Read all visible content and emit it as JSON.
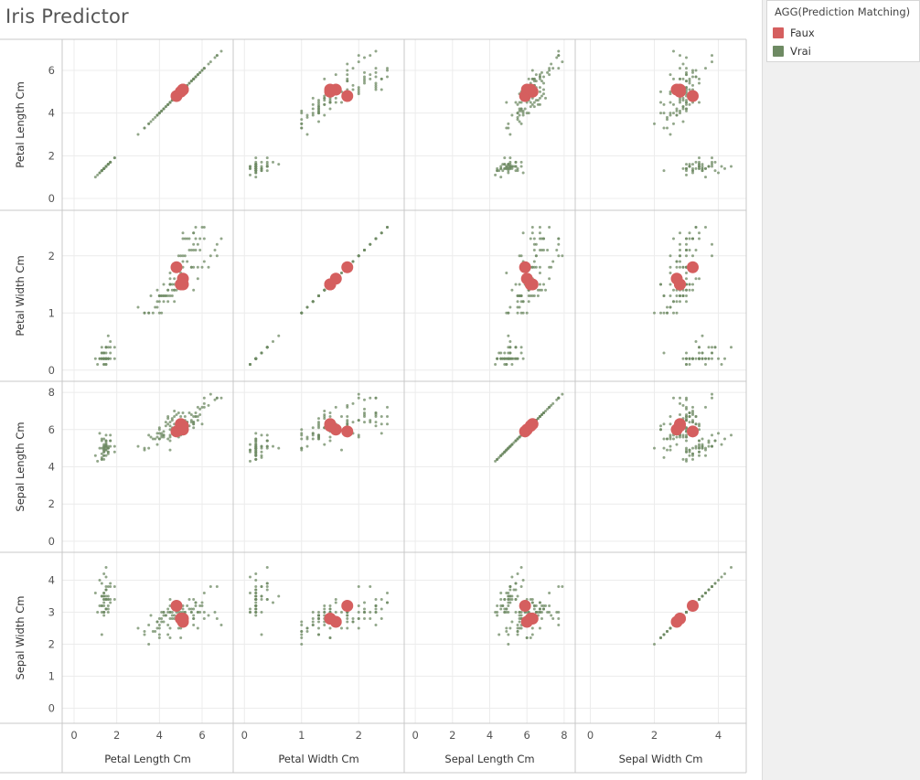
{
  "dashboard": {
    "title": "Iris Predictor"
  },
  "legend": {
    "title": "AGG(Prediction Matching)",
    "items": [
      {
        "label": "Faux",
        "color": "#d55f5f"
      },
      {
        "label": "Vrai",
        "color": "#6e8a63"
      }
    ]
  },
  "chart_data": {
    "type": "scatter",
    "matrix": "scatterplot-matrix",
    "variables": [
      "Petal Length Cm",
      "Petal Width Cm",
      "Sepal Length Cm",
      "Sepal Width Cm"
    ],
    "row_variables": [
      "Petal Length Cm",
      "Petal Width Cm",
      "Sepal Length Cm",
      "Sepal Width Cm"
    ],
    "col_variables": [
      "Petal Length Cm",
      "Petal Width Cm",
      "Sepal Length Cm",
      "Sepal Width Cm"
    ],
    "x_axes": {
      "Petal Length Cm": {
        "ticks": [
          0,
          2,
          4,
          6
        ],
        "range": [
          -0.3,
          7.2
        ]
      },
      "Petal Width Cm": {
        "ticks": [
          0,
          1,
          2
        ],
        "range": [
          -0.1,
          2.7
        ]
      },
      "Sepal Length Cm": {
        "ticks": [
          0,
          2,
          4,
          6,
          8
        ],
        "range": [
          -0.3,
          8.3
        ]
      },
      "Sepal Width Cm": {
        "ticks": [
          0,
          2,
          4
        ],
        "range": [
          -0.3,
          4.7
        ]
      }
    },
    "y_axes": {
      "Petal Length Cm": {
        "ticks": [
          0,
          2,
          4,
          6
        ],
        "range": [
          -0.3,
          7.2
        ]
      },
      "Petal Width Cm": {
        "ticks": [
          0,
          1,
          2
        ],
        "range": [
          -0.1,
          2.7
        ]
      },
      "Sepal Length Cm": {
        "ticks": [
          0,
          2,
          4,
          6,
          8
        ],
        "range": [
          -0.3,
          8.3
        ]
      },
      "Sepal Width Cm": {
        "ticks": [
          0,
          1,
          2,
          3,
          4
        ],
        "range": [
          -0.3,
          4.7
        ]
      }
    },
    "grid": true,
    "legend_position": "top-right",
    "series": [
      {
        "name": "Faux",
        "color": "#d55f5f",
        "points": [
          {
            "Petal Length Cm": 4.8,
            "Petal Width Cm": 1.8,
            "Sepal Length Cm": 5.9,
            "Sepal Width Cm": 3.2
          },
          {
            "Petal Length Cm": 5.0,
            "Petal Width Cm": 1.5,
            "Sepal Length Cm": 6.3,
            "Sepal Width Cm": 2.8
          },
          {
            "Petal Length Cm": 5.1,
            "Petal Width Cm": 1.6,
            "Sepal Length Cm": 6.0,
            "Sepal Width Cm": 2.7
          },
          {
            "Petal Length Cm": 5.1,
            "Petal Width Cm": 1.5,
            "Sepal Length Cm": 6.2,
            "Sepal Width Cm": 2.8
          }
        ]
      },
      {
        "name": "Vrai",
        "color": "#6e8a63",
        "points": [
          [
            5.1,
            3.5,
            1.4,
            0.2
          ],
          [
            4.9,
            3.0,
            1.4,
            0.2
          ],
          [
            4.7,
            3.2,
            1.3,
            0.2
          ],
          [
            4.6,
            3.1,
            1.5,
            0.2
          ],
          [
            5.0,
            3.6,
            1.4,
            0.2
          ],
          [
            5.4,
            3.9,
            1.7,
            0.4
          ],
          [
            4.6,
            3.4,
            1.4,
            0.3
          ],
          [
            5.0,
            3.4,
            1.5,
            0.2
          ],
          [
            4.4,
            2.9,
            1.4,
            0.2
          ],
          [
            4.9,
            3.1,
            1.5,
            0.1
          ],
          [
            5.4,
            3.7,
            1.5,
            0.2
          ],
          [
            4.8,
            3.4,
            1.6,
            0.2
          ],
          [
            4.8,
            3.0,
            1.4,
            0.1
          ],
          [
            4.3,
            3.0,
            1.1,
            0.1
          ],
          [
            5.8,
            4.0,
            1.2,
            0.2
          ],
          [
            5.7,
            4.4,
            1.5,
            0.4
          ],
          [
            5.4,
            3.9,
            1.3,
            0.4
          ],
          [
            5.1,
            3.5,
            1.4,
            0.3
          ],
          [
            5.7,
            3.8,
            1.7,
            0.3
          ],
          [
            5.1,
            3.8,
            1.5,
            0.3
          ],
          [
            5.4,
            3.4,
            1.7,
            0.2
          ],
          [
            5.1,
            3.7,
            1.5,
            0.4
          ],
          [
            4.6,
            3.6,
            1.0,
            0.2
          ],
          [
            5.1,
            3.3,
            1.7,
            0.5
          ],
          [
            4.8,
            3.4,
            1.9,
            0.2
          ],
          [
            5.0,
            3.0,
            1.6,
            0.2
          ],
          [
            5.0,
            3.4,
            1.6,
            0.4
          ],
          [
            5.2,
            3.5,
            1.5,
            0.2
          ],
          [
            5.2,
            3.4,
            1.4,
            0.2
          ],
          [
            4.7,
            3.2,
            1.6,
            0.2
          ],
          [
            4.8,
            3.1,
            1.6,
            0.2
          ],
          [
            5.4,
            3.4,
            1.5,
            0.4
          ],
          [
            5.2,
            4.1,
            1.5,
            0.1
          ],
          [
            5.5,
            4.2,
            1.4,
            0.2
          ],
          [
            4.9,
            3.1,
            1.5,
            0.2
          ],
          [
            5.0,
            3.2,
            1.2,
            0.2
          ],
          [
            5.5,
            3.5,
            1.3,
            0.2
          ],
          [
            4.9,
            3.6,
            1.4,
            0.1
          ],
          [
            4.4,
            3.0,
            1.3,
            0.2
          ],
          [
            5.1,
            3.4,
            1.5,
            0.2
          ],
          [
            5.0,
            3.5,
            1.3,
            0.3
          ],
          [
            4.5,
            2.3,
            1.3,
            0.3
          ],
          [
            4.4,
            3.2,
            1.3,
            0.2
          ],
          [
            5.0,
            3.5,
            1.6,
            0.6
          ],
          [
            5.1,
            3.8,
            1.9,
            0.4
          ],
          [
            4.8,
            3.0,
            1.4,
            0.3
          ],
          [
            5.1,
            3.8,
            1.6,
            0.2
          ],
          [
            4.6,
            3.2,
            1.4,
            0.2
          ],
          [
            5.3,
            3.7,
            1.5,
            0.2
          ],
          [
            5.0,
            3.3,
            1.4,
            0.2
          ],
          [
            7.0,
            3.2,
            4.7,
            1.4
          ],
          [
            6.4,
            3.2,
            4.5,
            1.5
          ],
          [
            6.9,
            3.1,
            4.9,
            1.5
          ],
          [
            5.5,
            2.3,
            4.0,
            1.3
          ],
          [
            6.5,
            2.8,
            4.6,
            1.5
          ],
          [
            5.7,
            2.8,
            4.5,
            1.3
          ],
          [
            6.3,
            3.3,
            4.7,
            1.6
          ],
          [
            4.9,
            2.4,
            3.3,
            1.0
          ],
          [
            6.6,
            2.9,
            4.6,
            1.3
          ],
          [
            5.2,
            2.7,
            3.9,
            1.4
          ],
          [
            5.0,
            2.0,
            3.5,
            1.0
          ],
          [
            5.9,
            3.0,
            4.2,
            1.5
          ],
          [
            6.0,
            2.2,
            4.0,
            1.0
          ],
          [
            6.1,
            2.9,
            4.7,
            1.4
          ],
          [
            5.6,
            2.9,
            3.6,
            1.3
          ],
          [
            6.7,
            3.1,
            4.4,
            1.4
          ],
          [
            5.6,
            3.0,
            4.5,
            1.5
          ],
          [
            5.8,
            2.7,
            4.1,
            1.0
          ],
          [
            6.2,
            2.2,
            4.5,
            1.5
          ],
          [
            5.6,
            2.5,
            3.9,
            1.1
          ],
          [
            6.1,
            2.8,
            4.0,
            1.3
          ],
          [
            6.3,
            2.5,
            4.9,
            1.5
          ],
          [
            6.1,
            2.8,
            4.7,
            1.2
          ],
          [
            6.4,
            2.9,
            4.3,
            1.3
          ],
          [
            6.6,
            3.0,
            4.4,
            1.4
          ],
          [
            6.8,
            2.8,
            4.8,
            1.4
          ],
          [
            6.7,
            3.0,
            5.0,
            1.7
          ],
          [
            5.7,
            2.6,
            3.5,
            1.0
          ],
          [
            5.5,
            2.4,
            3.8,
            1.1
          ],
          [
            5.5,
            2.4,
            3.7,
            1.0
          ],
          [
            5.8,
            2.7,
            3.9,
            1.2
          ],
          [
            6.0,
            2.7,
            5.1,
            1.6
          ],
          [
            5.4,
            3.0,
            4.5,
            1.5
          ],
          [
            6.0,
            3.4,
            4.5,
            1.6
          ],
          [
            6.7,
            3.1,
            4.7,
            1.5
          ],
          [
            6.3,
            2.3,
            4.4,
            1.3
          ],
          [
            5.6,
            3.0,
            4.1,
            1.3
          ],
          [
            5.5,
            2.5,
            4.0,
            1.3
          ],
          [
            5.5,
            2.6,
            4.4,
            1.2
          ],
          [
            6.1,
            3.0,
            4.6,
            1.4
          ],
          [
            5.8,
            2.6,
            4.0,
            1.2
          ],
          [
            5.0,
            2.3,
            3.3,
            1.0
          ],
          [
            5.6,
            2.7,
            4.2,
            1.3
          ],
          [
            5.7,
            3.0,
            4.2,
            1.2
          ],
          [
            5.7,
            2.9,
            4.2,
            1.3
          ],
          [
            6.2,
            2.9,
            4.3,
            1.3
          ],
          [
            5.1,
            2.5,
            3.0,
            1.1
          ],
          [
            5.7,
            2.8,
            4.1,
            1.3
          ],
          [
            6.3,
            3.3,
            6.0,
            2.5
          ],
          [
            5.8,
            2.7,
            5.1,
            1.9
          ],
          [
            7.1,
            3.0,
            5.9,
            2.1
          ],
          [
            6.3,
            2.9,
            5.6,
            1.8
          ],
          [
            6.5,
            3.0,
            5.8,
            2.2
          ],
          [
            7.6,
            3.0,
            6.6,
            2.1
          ],
          [
            4.9,
            2.5,
            4.5,
            1.7
          ],
          [
            7.3,
            2.9,
            6.3,
            1.8
          ],
          [
            6.7,
            2.5,
            5.8,
            1.8
          ],
          [
            7.2,
            3.6,
            6.1,
            2.5
          ],
          [
            6.5,
            3.2,
            5.1,
            2.0
          ],
          [
            6.4,
            2.7,
            5.3,
            1.9
          ],
          [
            6.8,
            3.0,
            5.5,
            2.1
          ],
          [
            5.7,
            2.5,
            5.0,
            2.0
          ],
          [
            5.8,
            2.8,
            5.1,
            2.4
          ],
          [
            6.4,
            3.2,
            5.3,
            2.3
          ],
          [
            6.5,
            3.0,
            5.5,
            1.8
          ],
          [
            7.7,
            3.8,
            6.7,
            2.2
          ],
          [
            7.7,
            2.6,
            6.9,
            2.3
          ],
          [
            6.0,
            2.2,
            5.0,
            1.5
          ],
          [
            6.9,
            3.2,
            5.7,
            2.3
          ],
          [
            5.6,
            2.8,
            4.9,
            2.0
          ],
          [
            7.7,
            2.8,
            6.7,
            2.0
          ],
          [
            6.3,
            2.7,
            4.9,
            1.8
          ],
          [
            6.7,
            3.3,
            5.7,
            2.1
          ],
          [
            7.2,
            3.2,
            6.0,
            1.8
          ],
          [
            6.2,
            2.8,
            4.8,
            1.8
          ],
          [
            6.1,
            3.0,
            4.9,
            1.8
          ],
          [
            6.4,
            2.8,
            5.6,
            2.1
          ],
          [
            7.2,
            3.0,
            5.8,
            1.6
          ],
          [
            7.4,
            2.8,
            6.1,
            1.9
          ],
          [
            7.9,
            3.8,
            6.4,
            2.0
          ],
          [
            6.4,
            2.8,
            5.6,
            2.2
          ],
          [
            6.1,
            2.6,
            5.6,
            1.4
          ],
          [
            7.7,
            3.0,
            6.1,
            2.3
          ],
          [
            6.3,
            3.4,
            5.6,
            2.4
          ],
          [
            6.4,
            3.1,
            5.5,
            1.8
          ],
          [
            6.0,
            3.0,
            4.8,
            1.8
          ],
          [
            6.9,
            3.1,
            5.4,
            2.1
          ],
          [
            6.7,
            3.1,
            5.6,
            2.4
          ],
          [
            6.9,
            3.1,
            5.1,
            2.3
          ],
          [
            6.8,
            3.2,
            5.9,
            2.3
          ],
          [
            6.7,
            3.3,
            5.7,
            2.5
          ],
          [
            6.7,
            3.0,
            5.2,
            2.3
          ],
          [
            6.5,
            3.0,
            5.2,
            2.0
          ],
          [
            6.2,
            3.4,
            5.4,
            2.3
          ],
          [
            5.9,
            3.0,
            5.1,
            1.8
          ]
        ],
        "point_fields": [
          "Sepal Length Cm",
          "Sepal Width Cm",
          "Petal Length Cm",
          "Petal Width Cm"
        ]
      }
    ]
  }
}
